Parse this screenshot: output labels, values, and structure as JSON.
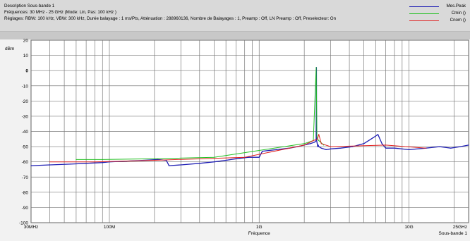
{
  "header": {
    "line1": "Description Sous-bande 1",
    "line2": "Fréquences: 30 MHz - 25 GHz (Mode: Lin, Pas: 100 kHz )",
    "line3": "Réglages: RBW: 100 kHz, VBW: 300 kHz, Durée balayage : 1 ms/Pts, Atténuation : 288960136, Nombre de Balayages : 1, Preamp : Off, LN Preamp : Off, Preselecteur: On"
  },
  "legend": [
    {
      "label": "Mes.Peak",
      "color": "#1f1fb4"
    },
    {
      "label": "Cmin ()",
      "color": "#22c022"
    },
    {
      "label": "Cnom ()",
      "color": "#e02020"
    }
  ],
  "chart_data": {
    "type": "line",
    "title": "",
    "xlabel": "Fréquence",
    "ylabel": "dBm",
    "x_scale": "log",
    "xlim": [
      30,
      25000
    ],
    "ylim": [
      -100,
      20
    ],
    "x_tick_labels": [
      "30MHz",
      "100M",
      "1G",
      "10G",
      "25GHz"
    ],
    "x_tick_values": [
      30,
      100,
      1000,
      10000,
      25000
    ],
    "y_ticks": [
      20,
      10,
      0,
      -10,
      -20,
      -30,
      -40,
      -50,
      -60,
      -70,
      -80,
      -90,
      -100
    ],
    "y_tick_labels": [
      "20",
      "10",
      "0",
      "-10",
      "-20",
      "-30",
      "-40",
      "-50",
      "-60",
      "-70",
      "-80",
      "-90",
      "-100"
    ],
    "corner_label": "Sous-bande 1",
    "series": [
      {
        "name": "Mes.Peak",
        "color": "#1f1fb4",
        "x": [
          30,
          40,
          55,
          70,
          90,
          100,
          130,
          170,
          210,
          240,
          250,
          300,
          400,
          500,
          600,
          700,
          850,
          1000,
          1050,
          1300,
          1600,
          1800,
          2000,
          2200,
          2350,
          2400,
          2410,
          2420,
          2440,
          2460,
          2480,
          2500,
          2600,
          2800,
          3000,
          3500,
          4200,
          5000,
          5800,
          6200,
          6600,
          7000,
          8000,
          10000,
          13000,
          16000,
          19000,
          22000,
          25000
        ],
        "y": [
          -62.5,
          -62,
          -61.5,
          -61,
          -60.5,
          -60,
          -59.5,
          -59,
          -58.5,
          -59,
          -62.5,
          -62,
          -61,
          -60,
          -59,
          -58,
          -57,
          -57,
          -53,
          -52,
          -51,
          -50,
          -49,
          -48,
          -47,
          -46,
          2,
          -46,
          -48,
          -50,
          -49,
          -50,
          -51,
          -52,
          -51.5,
          -51,
          -50,
          -48,
          -44,
          -42,
          -48,
          -51,
          -51,
          -52,
          -51,
          -50,
          -51,
          -50,
          -49
        ]
      },
      {
        "name": "Cmin ()",
        "color": "#22c022",
        "x": [
          60,
          90,
          200,
          500,
          2000,
          2300,
          2400,
          2430,
          2450,
          2500,
          2700
        ],
        "y": [
          -58.5,
          -58.5,
          -58,
          -57,
          -48,
          -46,
          2,
          -44,
          -45,
          -46,
          -49
        ]
      },
      {
        "name": "Cnom ()",
        "color": "#e02020",
        "x": [
          40,
          80,
          200,
          800,
          2000,
          2300,
          2450,
          2500,
          2600,
          3000,
          7000,
          13000
        ],
        "y": [
          -60,
          -60,
          -59,
          -57,
          -49,
          -46,
          -45,
          -42,
          -48,
          -50,
          -49,
          -51
        ]
      }
    ]
  }
}
